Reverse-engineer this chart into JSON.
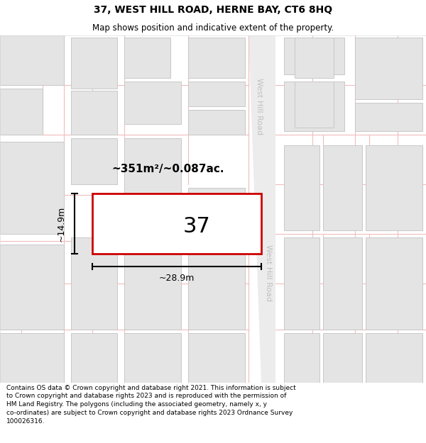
{
  "title": "37, WEST HILL ROAD, HERNE BAY, CT6 8HQ",
  "subtitle": "Map shows position and indicative extent of the property.",
  "footer": "Contains OS data © Crown copyright and database right 2021. This information is subject to Crown copyright and database rights 2023 and is reproduced with the permission of HM Land Registry. The polygons (including the associated geometry, namely x, y co-ordinates) are subject to Crown copyright and database rights 2023 Ordnance Survey 100026316.",
  "area_label": "~351m²/~0.087ac.",
  "width_label": "~28.9m",
  "height_label": "~14.9m",
  "property_number": "37",
  "map_bg": "#ffffff",
  "block_fill": "#e4e4e4",
  "block_edge": "#c8c8c8",
  "plot_line_color": "#f0bcbc",
  "property_fill": "#ffffff",
  "property_edge": "#dd0000",
  "road_label_color": "#c0c0c0",
  "road_fill": "#f0f0f0"
}
